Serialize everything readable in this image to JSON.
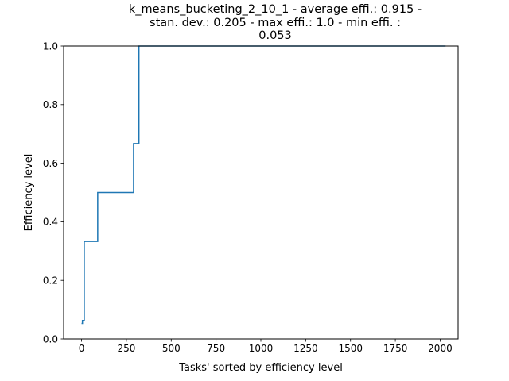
{
  "chart_data": {
    "type": "line",
    "title_lines": [
      "k_means_bucketing_2_10_1 - average effi.: 0.915 -",
      "stan. dev.: 0.205 - max effi.: 1.0 - min effi. :",
      "0.053"
    ],
    "xlabel": "Tasks' sorted by efficiency level",
    "ylabel": "Efficiency level",
    "xlim": [
      -100,
      2100
    ],
    "ylim": [
      0,
      1
    ],
    "xticks": [
      0,
      250,
      500,
      750,
      1000,
      1250,
      1500,
      1750,
      2000
    ],
    "xtick_labels": [
      "0",
      "250",
      "500",
      "750",
      "1000",
      "1250",
      "1500",
      "1750",
      "2000"
    ],
    "yticks": [
      0,
      0.2,
      0.4,
      0.6,
      0.8,
      1.0
    ],
    "ytick_labels": [
      "0.0",
      "0.2",
      "0.4",
      "0.6",
      "0.8",
      "1.0"
    ],
    "grid": false,
    "series": [
      {
        "color": "#1f77b4",
        "step": true,
        "x": [
          0,
          5,
          10,
          15,
          20,
          90,
          92,
          290,
          295,
          320,
          2030
        ],
        "y": [
          0.053,
          0.063,
          0.063,
          0.333,
          0.333,
          0.5,
          0.5,
          0.667,
          0.667,
          1.0,
          1.0
        ]
      }
    ]
  }
}
